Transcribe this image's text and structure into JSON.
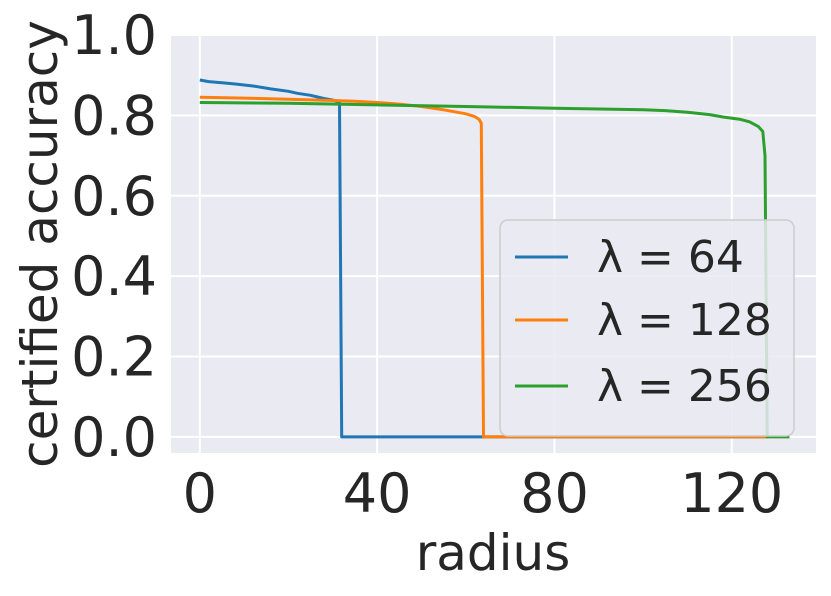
{
  "chart_data": {
    "type": "line",
    "xlabel": "radius",
    "ylabel": "certified accuracy",
    "xlim": [
      -6.5,
      139
    ],
    "ylim": [
      -0.04,
      1.0
    ],
    "xticks": [
      0,
      40,
      80,
      120
    ],
    "xtick_labels": [
      "0",
      "40",
      "80",
      "120"
    ],
    "yticks": [
      0.0,
      0.2,
      0.4,
      0.6,
      0.8,
      1.0
    ],
    "ytick_labels": [
      "0.0",
      "0.2",
      "0.4",
      "0.6",
      "0.8",
      "1.0"
    ],
    "grid": true,
    "legend_position": "center-right",
    "background": "#eaeaf2",
    "series": [
      {
        "name": "λ = 64",
        "color": "#1f77b4",
        "x": [
          0,
          2,
          5,
          8,
          12,
          16,
          20,
          22,
          25,
          28,
          30,
          31,
          31.5,
          32,
          40,
          60,
          80,
          100,
          120,
          128
        ],
        "y": [
          0.888,
          0.884,
          0.881,
          0.878,
          0.873,
          0.866,
          0.86,
          0.855,
          0.85,
          0.842,
          0.838,
          0.835,
          0.832,
          0.0,
          0.0,
          0.0,
          0.0,
          0.0,
          0.0,
          0.0
        ]
      },
      {
        "name": "λ = 128",
        "color": "#ff7f0e",
        "x": [
          0,
          10,
          20,
          30,
          35,
          40,
          45,
          50,
          55,
          58,
          60,
          62,
          63,
          63.5,
          64,
          80,
          100,
          120,
          128
        ],
        "y": [
          0.845,
          0.843,
          0.84,
          0.837,
          0.835,
          0.832,
          0.828,
          0.822,
          0.814,
          0.808,
          0.804,
          0.797,
          0.79,
          0.78,
          0.0,
          0.0,
          0.0,
          0.0,
          0.0
        ]
      },
      {
        "name": "λ = 256",
        "color": "#2ca02c",
        "x": [
          0,
          20,
          40,
          60,
          80,
          90,
          100,
          105,
          110,
          115,
          118,
          122,
          124,
          126,
          127,
          127.5,
          128,
          133
        ],
        "y": [
          0.832,
          0.83,
          0.826,
          0.822,
          0.818,
          0.816,
          0.814,
          0.812,
          0.808,
          0.802,
          0.796,
          0.79,
          0.784,
          0.772,
          0.76,
          0.7,
          0.0,
          0.0
        ]
      }
    ]
  }
}
